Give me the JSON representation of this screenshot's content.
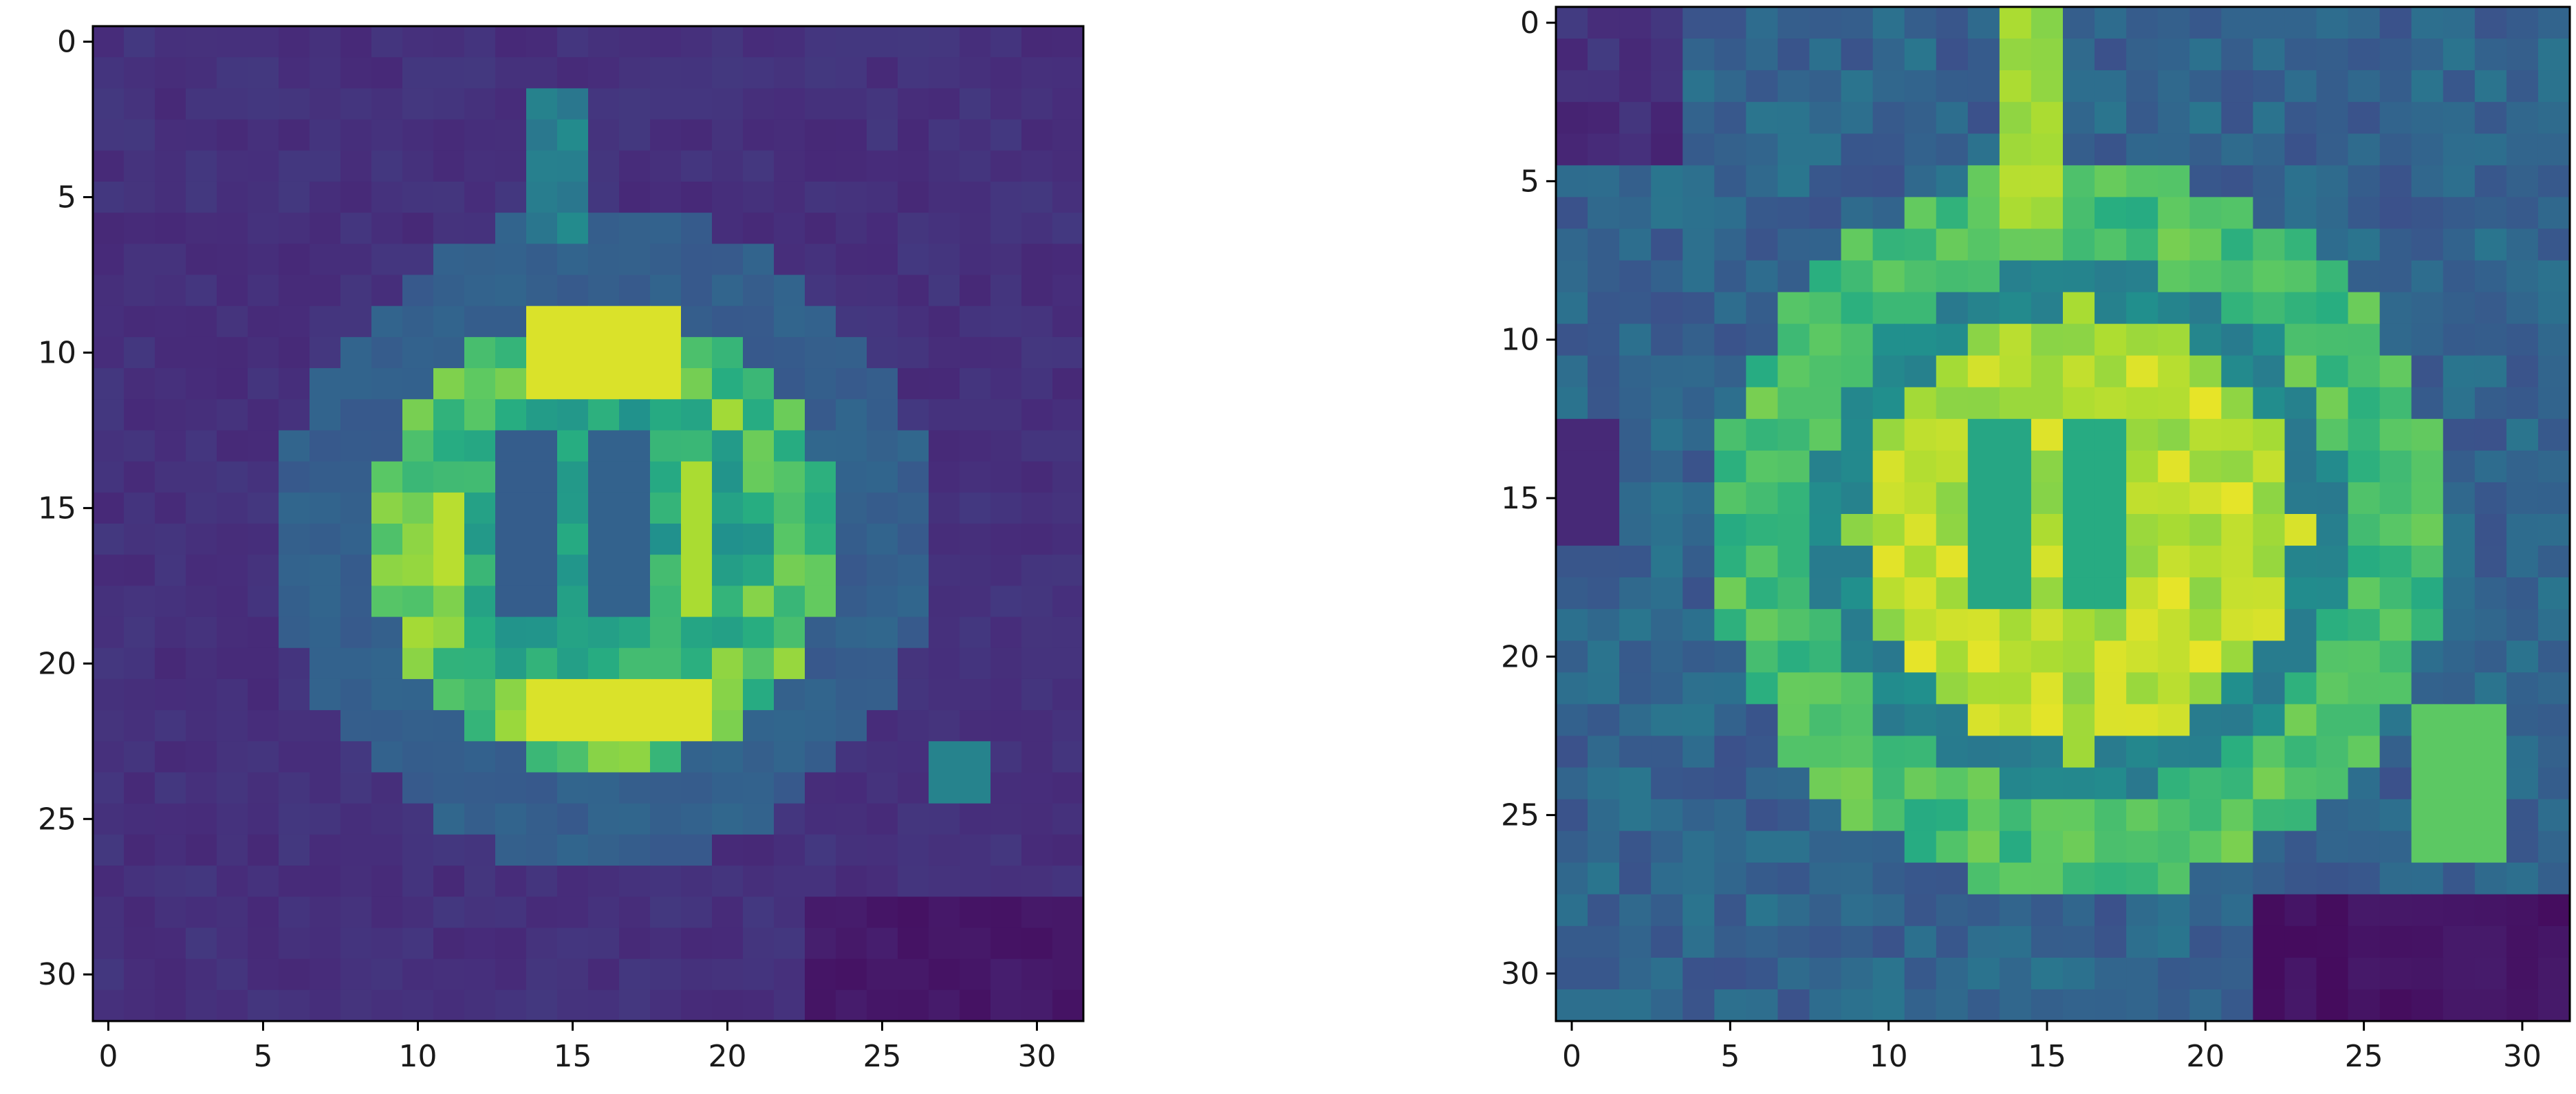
{
  "chart_data": [
    {
      "type": "heatmap",
      "title": "",
      "xlabel": "",
      "ylabel": "",
      "grid": false,
      "colormap": "viridis",
      "shape": [
        32,
        32
      ],
      "xlim": [
        -0.5,
        31.5
      ],
      "ylim": [
        31.5,
        -0.5
      ],
      "xticks": [
        0,
        5,
        10,
        15,
        20,
        25,
        30
      ],
      "yticks": [
        0,
        5,
        10,
        15,
        20,
        25,
        30
      ],
      "xtick_labels": [
        "0",
        "5",
        "10",
        "15",
        "20",
        "25",
        "30"
      ],
      "ytick_labels": [
        "0",
        "5",
        "10",
        "15",
        "20",
        "25",
        "30"
      ],
      "values_description_free": true,
      "dominant_color": "#46327e",
      "highlight_color": "#f2e01e"
    },
    {
      "type": "heatmap",
      "title": "",
      "xlabel": "",
      "ylabel": "",
      "grid": false,
      "colormap": "viridis",
      "shape": [
        32,
        32
      ],
      "xlim": [
        -0.5,
        31.5
      ],
      "ylim": [
        31.5,
        -0.5
      ],
      "xticks": [
        0,
        5,
        10,
        15,
        20,
        25,
        30
      ],
      "yticks": [
        0,
        5,
        10,
        15,
        20,
        25,
        30
      ],
      "xtick_labels": [
        "0",
        "5",
        "10",
        "15",
        "20",
        "25",
        "30"
      ],
      "ytick_labels": [
        "0",
        "5",
        "10",
        "15",
        "20",
        "25",
        "30"
      ],
      "dominant_color": "#3b7f8e",
      "highlight_color": "#f2e01e"
    }
  ]
}
